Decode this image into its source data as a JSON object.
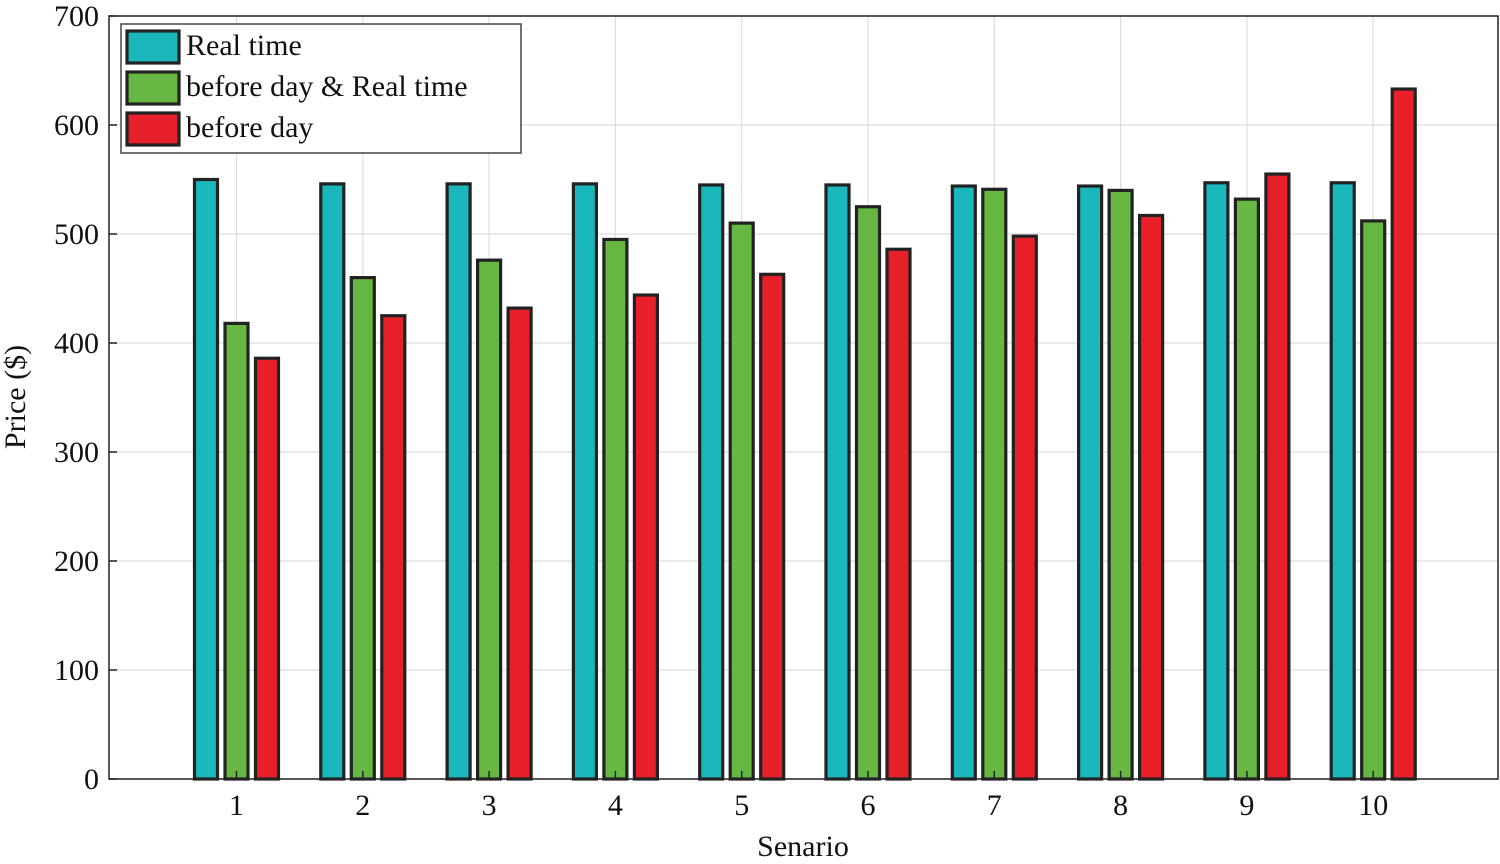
{
  "chart_data": {
    "type": "bar",
    "title": "",
    "xlabel": "Senario",
    "ylabel": "Price ($)",
    "categories": [
      "1",
      "2",
      "3",
      "4",
      "5",
      "6",
      "7",
      "8",
      "9",
      "10"
    ],
    "ylim": [
      0,
      700
    ],
    "yticks": [
      "0",
      "100",
      "200",
      "300",
      "400",
      "500",
      "600",
      "700"
    ],
    "grid": true,
    "legend_position": "top-left",
    "series": [
      {
        "name": "Real time",
        "color": "#1ab8bd",
        "values": [
          550,
          546,
          546,
          546,
          545,
          545,
          544,
          544,
          547,
          547
        ]
      },
      {
        "name": "before day & Real time",
        "color": "#66b843",
        "values": [
          418,
          460,
          476,
          495,
          510,
          525,
          541,
          540,
          532,
          512
        ]
      },
      {
        "name": "before day",
        "color": "#e8202a",
        "values": [
          386,
          425,
          432,
          444,
          463,
          486,
          498,
          517,
          555,
          633
        ]
      }
    ]
  }
}
